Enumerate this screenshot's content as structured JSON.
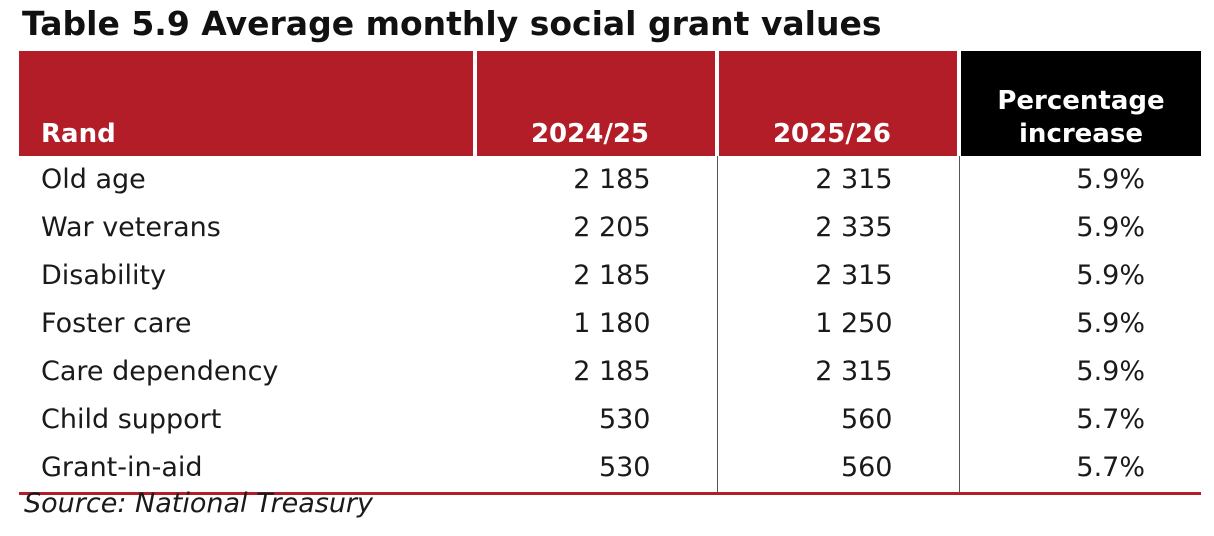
{
  "title": "Table 5.9  Average monthly social grant values",
  "table": {
    "headers": {
      "label": "Rand",
      "col1": "2024/25",
      "col2": "2025/26",
      "col3_line1": "Percentage",
      "col3_line2": "increase"
    },
    "rows": [
      {
        "label": "Old age",
        "v2024": "2 185",
        "v2025": "2 315",
        "pct": "5.9%"
      },
      {
        "label": "War veterans",
        "v2024": "2 205",
        "v2025": "2 335",
        "pct": "5.9%"
      },
      {
        "label": "Disability",
        "v2024": "2 185",
        "v2025": "2 315",
        "pct": "5.9%"
      },
      {
        "label": "Foster care",
        "v2024": "1 180",
        "v2025": "1 250",
        "pct": "5.9%"
      },
      {
        "label": "Care dependency",
        "v2024": "2 185",
        "v2025": "2 315",
        "pct": "5.9%"
      },
      {
        "label": "Child support",
        "v2024": "530",
        "v2025": "560",
        "pct": "5.7%"
      },
      {
        "label": "Grant-in-aid",
        "v2024": "530",
        "v2025": "560",
        "pct": "5.7%"
      }
    ]
  },
  "source": "Source: National Treasury",
  "colors": {
    "header_red": "#b31d28",
    "header_black": "#000000"
  }
}
